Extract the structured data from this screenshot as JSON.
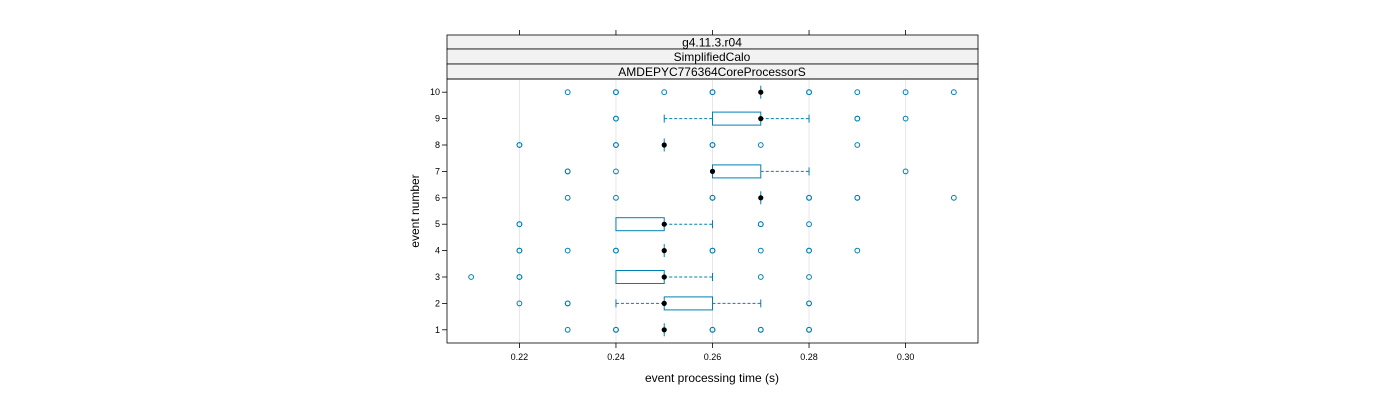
{
  "chart_data": {
    "type": "boxplot",
    "strips": [
      "g4.11.3.r04",
      "SimplifiedCalo",
      "AMDEPYC776364CoreProcessorS"
    ],
    "xlabel": "event processing time (s)",
    "ylabel": "event number",
    "xlim": [
      0.205,
      0.315
    ],
    "x_ticks": [
      "0.22",
      "0.24",
      "0.26",
      "0.28",
      "0.30"
    ],
    "x_tick_values": [
      0.22,
      0.24,
      0.26,
      0.28,
      0.3
    ],
    "y_ticks": [
      "1",
      "2",
      "3",
      "4",
      "5",
      "6",
      "7",
      "8",
      "9",
      "10"
    ],
    "grid": true,
    "colors": {
      "box": "#0080b0",
      "outlier": "#0080b0",
      "median": "#000000",
      "grid": "#e6e6e6",
      "strip": "#f2f2f2"
    },
    "events": [
      {
        "event": 1,
        "median": 0.25,
        "q1": 0.25,
        "q3": 0.25,
        "whisker_low": 0.25,
        "whisker_high": 0.25,
        "outliers": [
          0.23,
          0.24,
          0.24,
          0.26,
          0.26,
          0.27,
          0.27,
          0.28,
          0.28
        ]
      },
      {
        "event": 2,
        "median": 0.25,
        "q1": 0.25,
        "q3": 0.26,
        "whisker_low": 0.24,
        "whisker_high": 0.27,
        "outliers": [
          0.22,
          0.23,
          0.23,
          0.28,
          0.28
        ]
      },
      {
        "event": 3,
        "median": 0.25,
        "q1": 0.24,
        "q3": 0.25,
        "whisker_low": 0.24,
        "whisker_high": 0.26,
        "outliers": [
          0.21,
          0.22,
          0.22,
          0.27,
          0.28
        ]
      },
      {
        "event": 4,
        "median": 0.25,
        "q1": 0.25,
        "q3": 0.25,
        "whisker_low": 0.25,
        "whisker_high": 0.25,
        "outliers": [
          0.22,
          0.22,
          0.23,
          0.24,
          0.24,
          0.26,
          0.26,
          0.27,
          0.28,
          0.28,
          0.29
        ]
      },
      {
        "event": 5,
        "median": 0.25,
        "q1": 0.24,
        "q3": 0.25,
        "whisker_low": 0.24,
        "whisker_high": 0.26,
        "outliers": [
          0.22,
          0.22,
          0.27,
          0.27,
          0.28
        ]
      },
      {
        "event": 6,
        "median": 0.27,
        "q1": 0.27,
        "q3": 0.27,
        "whisker_low": 0.27,
        "whisker_high": 0.27,
        "outliers": [
          0.23,
          0.24,
          0.26,
          0.26,
          0.28,
          0.28,
          0.29,
          0.29,
          0.31
        ]
      },
      {
        "event": 7,
        "median": 0.26,
        "q1": 0.26,
        "q3": 0.27,
        "whisker_low": 0.26,
        "whisker_high": 0.28,
        "outliers": [
          0.23,
          0.23,
          0.24,
          0.3
        ]
      },
      {
        "event": 8,
        "median": 0.25,
        "q1": 0.25,
        "q3": 0.25,
        "whisker_low": 0.25,
        "whisker_high": 0.25,
        "outliers": [
          0.22,
          0.22,
          0.24,
          0.24,
          0.26,
          0.26,
          0.27,
          0.29
        ]
      },
      {
        "event": 9,
        "median": 0.27,
        "q1": 0.26,
        "q3": 0.27,
        "whisker_low": 0.25,
        "whisker_high": 0.28,
        "outliers": [
          0.24,
          0.24,
          0.29,
          0.29,
          0.3
        ]
      },
      {
        "event": 10,
        "median": 0.27,
        "q1": 0.27,
        "q3": 0.27,
        "whisker_low": 0.27,
        "whisker_high": 0.27,
        "outliers": [
          0.23,
          0.24,
          0.24,
          0.25,
          0.26,
          0.26,
          0.28,
          0.28,
          0.29,
          0.3,
          0.31
        ]
      }
    ]
  }
}
